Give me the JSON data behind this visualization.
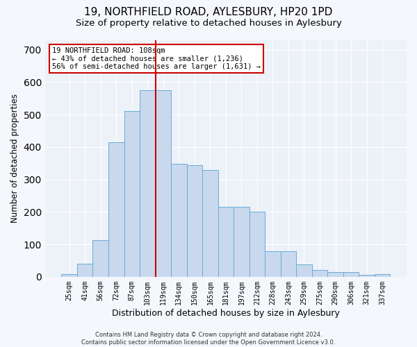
{
  "title": "19, NORTHFIELD ROAD, AYLESBURY, HP20 1PD",
  "subtitle": "Size of property relative to detached houses in Aylesbury",
  "xlabel": "Distribution of detached houses by size in Aylesbury",
  "ylabel": "Number of detached properties",
  "categories": [
    "25sqm",
    "41sqm",
    "56sqm",
    "72sqm",
    "87sqm",
    "103sqm",
    "119sqm",
    "134sqm",
    "150sqm",
    "165sqm",
    "181sqm",
    "197sqm",
    "212sqm",
    "228sqm",
    "243sqm",
    "259sqm",
    "275sqm",
    "290sqm",
    "306sqm",
    "321sqm",
    "337sqm"
  ],
  "values": [
    8,
    40,
    113,
    415,
    510,
    575,
    575,
    348,
    345,
    330,
    215,
    215,
    200,
    79,
    79,
    38,
    22,
    14,
    14,
    5,
    8
  ],
  "bar_color": "#c8d9ee",
  "bar_edge_color": "#6aaad4",
  "vline_color": "#cc0000",
  "vline_index": 5.5,
  "annotation_text_line1": "19 NORTHFIELD ROAD: 108sqm",
  "annotation_text_line2": "← 43% of detached houses are smaller (1,236)",
  "annotation_text_line3": "56% of semi-detached houses are larger (1,631) →",
  "footer_text": "Contains HM Land Registry data © Crown copyright and database right 2024.\nContains public sector information licensed under the Open Government Licence v3.0.",
  "ylim": [
    0,
    730
  ],
  "background_color": "#edf2f9",
  "fig_background_color": "#f5f7fc",
  "grid_color": "#ffffff",
  "title_fontsize": 11,
  "subtitle_fontsize": 9.5,
  "ylabel_fontsize": 8.5,
  "xlabel_fontsize": 9,
  "tick_fontsize": 7,
  "footer_fontsize": 6,
  "annotation_fontsize": 7.5
}
